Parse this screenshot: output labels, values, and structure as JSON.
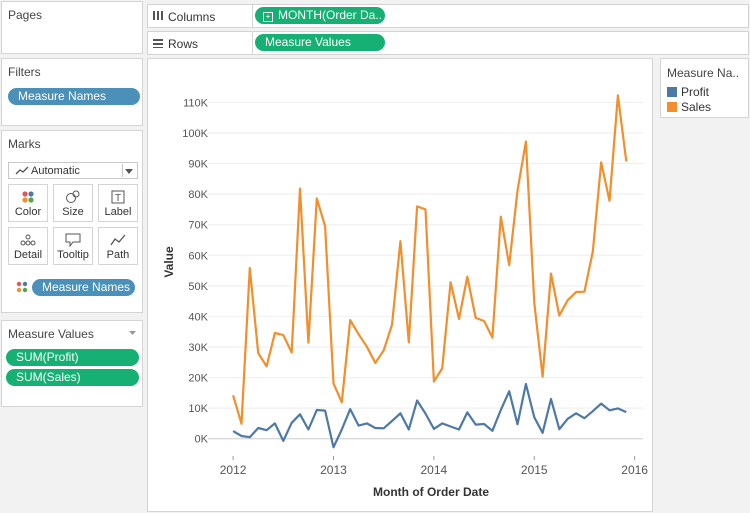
{
  "cards": {
    "pages": {
      "title": "Pages"
    },
    "filters": {
      "title": "Filters",
      "pill": "Measure Names"
    },
    "marks": {
      "title": "Marks",
      "mark_type": "Automatic",
      "tiles": [
        {
          "label": "Color",
          "icon": "color-dots-icon"
        },
        {
          "label": "Size",
          "icon": "size-icon"
        },
        {
          "label": "Label",
          "icon": "label-icon"
        },
        {
          "label": "Detail",
          "icon": "detail-icon"
        },
        {
          "label": "Tooltip",
          "icon": "tooltip-icon"
        },
        {
          "label": "Path",
          "icon": "path-icon"
        }
      ],
      "color_pill": "Measure Names"
    },
    "measure_values": {
      "title": "Measure Values",
      "items": [
        "SUM(Profit)",
        "SUM(Sales)"
      ]
    }
  },
  "shelves": {
    "columns": {
      "label": "Columns",
      "pill": "MONTH(Order Da.."
    },
    "rows": {
      "label": "Rows",
      "pill": "Measure Values"
    }
  },
  "legend": {
    "title": "Measure Na..",
    "items": [
      {
        "label": "Profit",
        "color": "#4e79a7"
      },
      {
        "label": "Sales",
        "color": "#f28e2b"
      }
    ]
  },
  "chart_data": {
    "type": "line",
    "xlabel": "Month of Order Date",
    "ylabel": "Value",
    "x_ticks": [
      "2012",
      "2013",
      "2014",
      "2015",
      "2016"
    ],
    "y_ticks": [
      {
        "value": 0,
        "label": "0K"
      },
      {
        "value": 10000,
        "label": "10K"
      },
      {
        "value": 20000,
        "label": "20K"
      },
      {
        "value": 30000,
        "label": "30K"
      },
      {
        "value": 40000,
        "label": "40K"
      },
      {
        "value": 50000,
        "label": "50K"
      },
      {
        "value": 60000,
        "label": "60K"
      },
      {
        "value": 70000,
        "label": "70K"
      },
      {
        "value": 80000,
        "label": "80K"
      },
      {
        "value": 90000,
        "label": "90K"
      },
      {
        "value": 100000,
        "label": "100K"
      },
      {
        "value": 110000,
        "label": "110K"
      }
    ],
    "xlim": [
      "2011-10",
      "2016-02"
    ],
    "ylim": [
      -5000,
      117000
    ],
    "x": [
      "2012-01",
      "2012-02",
      "2012-03",
      "2012-04",
      "2012-05",
      "2012-06",
      "2012-07",
      "2012-08",
      "2012-09",
      "2012-10",
      "2012-11",
      "2012-12",
      "2013-01",
      "2013-02",
      "2013-03",
      "2013-04",
      "2013-05",
      "2013-06",
      "2013-07",
      "2013-08",
      "2013-09",
      "2013-10",
      "2013-11",
      "2013-12",
      "2014-01",
      "2014-02",
      "2014-03",
      "2014-04",
      "2014-05",
      "2014-06",
      "2014-07",
      "2014-08",
      "2014-09",
      "2014-10",
      "2014-11",
      "2014-12",
      "2015-01",
      "2015-02",
      "2015-03",
      "2015-04",
      "2015-05",
      "2015-06",
      "2015-07",
      "2015-08",
      "2015-09",
      "2015-10",
      "2015-11",
      "2015-12"
    ],
    "series": [
      {
        "name": "Profit",
        "color": "#4e79a7",
        "values": [
          2500,
          900,
          500,
          3500,
          2800,
          5000,
          -700,
          5200,
          8000,
          3000,
          9400,
          9200,
          -2800,
          3000,
          9700,
          4300,
          5000,
          3500,
          3400,
          5800,
          8300,
          3000,
          12500,
          8200,
          3200,
          5000,
          4000,
          3000,
          8600,
          4600,
          4800,
          2600,
          9400,
          15500,
          4700,
          17900,
          7000,
          1900,
          13000,
          3100,
          6500,
          8300,
          6700,
          9000,
          11500,
          9300,
          9900,
          8700
        ]
      },
      {
        "name": "Sales",
        "color": "#f28e2b",
        "values": [
          14200,
          4900,
          55800,
          28000,
          23700,
          34600,
          33900,
          28200,
          81800,
          31400,
          78600,
          69500,
          18100,
          11900,
          38800,
          34200,
          30100,
          24800,
          28900,
          37300,
          64600,
          31500,
          76000,
          75000,
          18700,
          23000,
          51200,
          39200,
          53000,
          39500,
          38500,
          33100,
          72600,
          56800,
          81200,
          97200,
          44400,
          20300,
          54000,
          40300,
          45300,
          48000,
          48100,
          61200,
          90400,
          77800,
          112300,
          90700
        ]
      }
    ]
  }
}
